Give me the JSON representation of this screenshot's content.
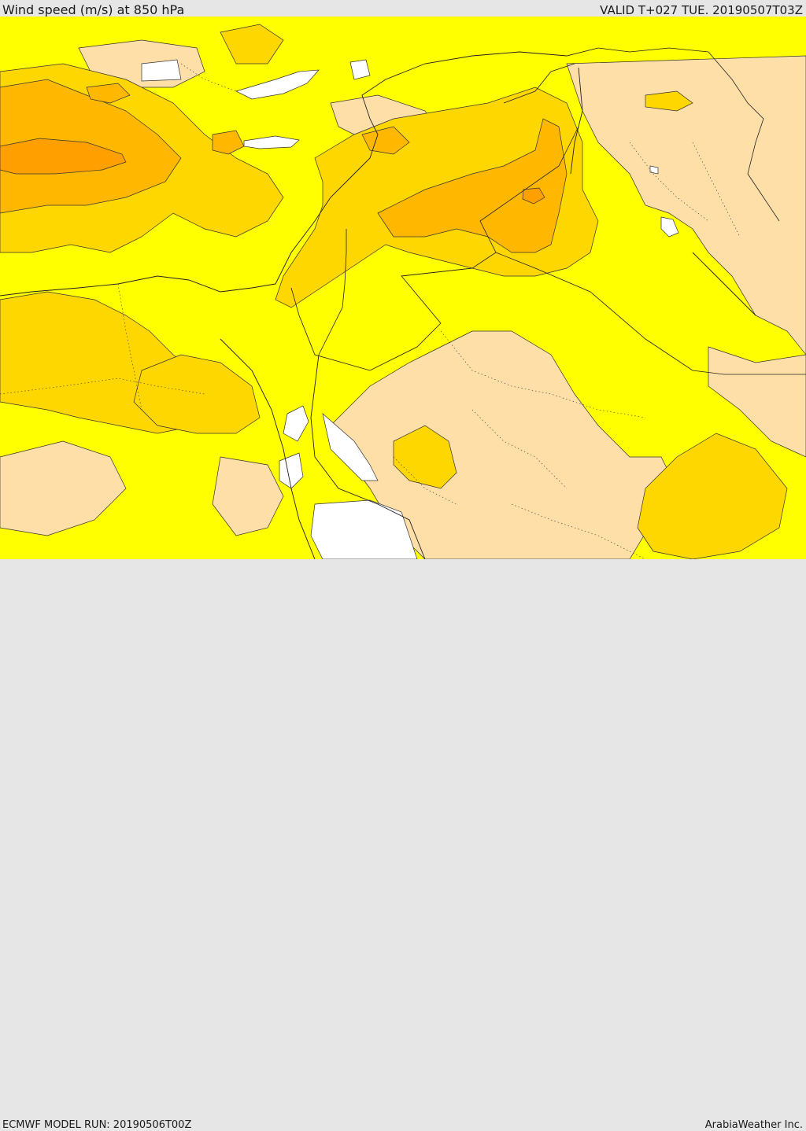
{
  "header": {
    "title": "Wind speed (m/s) at 850 hPa",
    "valid": "VALID T+027 TUE. 20190507T03Z"
  },
  "footer": {
    "model_run": "ECMWF MODEL RUN: 20190506T00Z",
    "brand": "ArabiaWeather Inc."
  },
  "colors": {
    "background": "#e6e6e6",
    "level_1": "#ffffff",
    "level_2": "#ffdfa8",
    "level_3": "#ffff00",
    "level_4": "#ffd700",
    "level_5": "#ffb700",
    "level_6": "#ff9f00",
    "contour": "#333333",
    "border": "#222222"
  }
}
